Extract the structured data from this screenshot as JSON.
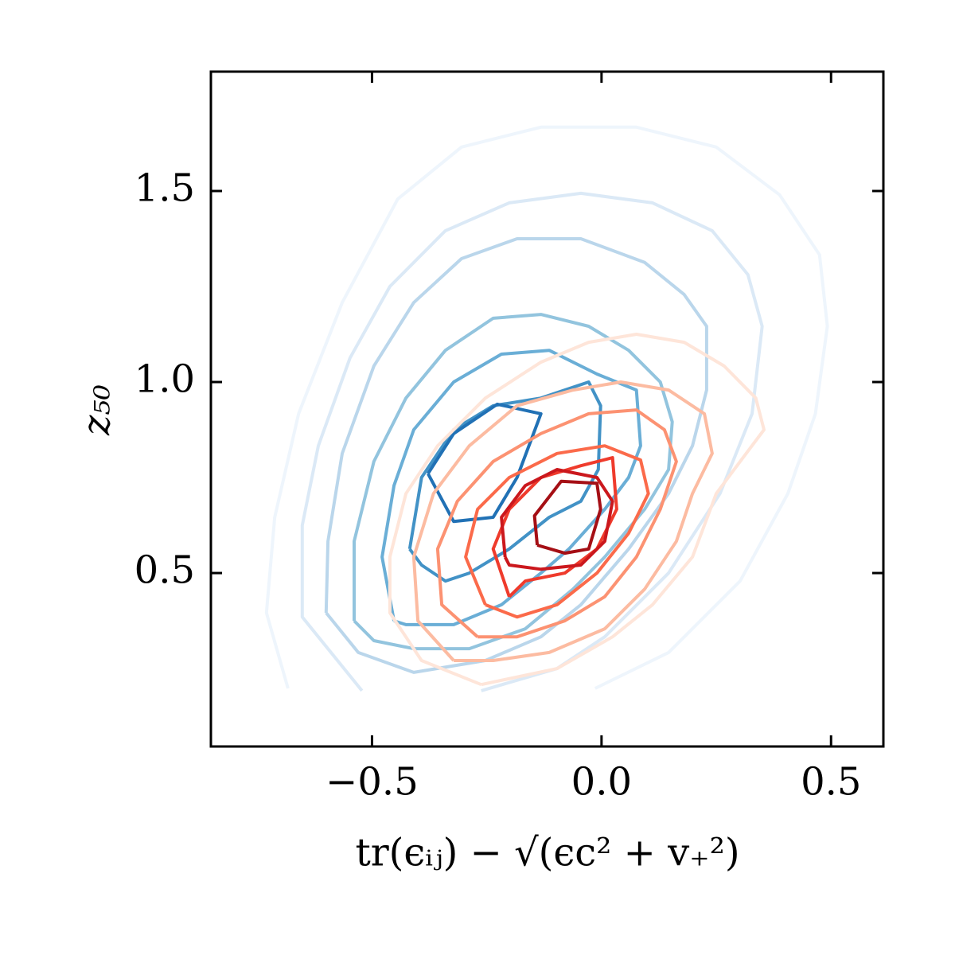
{
  "chart_data": {
    "type": "contour",
    "xlabel": "tr(ϵᵢⱼ) − √(ϵc² + v₊²)",
    "ylabel": "z₅₀",
    "xlim": [
      -0.851,
      0.614
    ],
    "ylim": [
      0.046,
      1.8125
    ],
    "xticks": [
      {
        "value": -0.5,
        "label": "−0.5"
      },
      {
        "value": 0,
        "label": "0.0"
      },
      0.5
    ],
    "yticks": [
      0.5,
      {
        "value": 1,
        "label": "1.0"
      },
      1.5
    ],
    "series": [
      {
        "color": "#eef5fc",
        "x": [
          -0.683,
          -0.73,
          -0.712,
          -0.66,
          -0.565,
          -0.444,
          -0.305,
          -0.132,
          0.076,
          0.25,
          0.388,
          0.475,
          0.492,
          0.466,
          0.406,
          0.302,
          0.146,
          -0.014
        ],
        "values": [
          0.198,
          0.396,
          0.646,
          0.917,
          1.208,
          1.479,
          1.615,
          1.667,
          1.667,
          1.615,
          1.49,
          1.333,
          1.146,
          0.917,
          0.708,
          0.479,
          0.292,
          0.198
        ]
      },
      {
        "color": "#dbe9f6",
        "x": [
          -0.522,
          -0.652,
          -0.652,
          -0.617,
          -0.548,
          -0.461,
          -0.34,
          -0.201,
          -0.045,
          0.111,
          0.241,
          0.319,
          0.35,
          0.328,
          0.258,
          0.146,
          0.007,
          -0.097,
          -0.262
        ],
        "values": [
          0.192,
          0.385,
          0.625,
          0.833,
          1.063,
          1.25,
          1.396,
          1.469,
          1.494,
          1.469,
          1.396,
          1.281,
          1.146,
          0.917,
          0.708,
          0.5,
          0.333,
          0.25,
          0.192
        ]
      },
      {
        "color": "#bad6eb",
        "x": [
          -0.6,
          -0.596,
          -0.565,
          -0.496,
          -0.409,
          -0.305,
          -0.184,
          -0.045,
          0.094,
          0.18,
          0.229,
          0.229,
          0.198,
          0.146,
          0.059,
          -0.045,
          -0.132,
          -0.253,
          -0.409,
          -0.53,
          -0.6
        ],
        "values": [
          0.396,
          0.583,
          0.813,
          1.042,
          1.208,
          1.323,
          1.375,
          1.375,
          1.313,
          1.229,
          1.146,
          0.979,
          0.833,
          0.708,
          0.563,
          0.417,
          0.333,
          0.271,
          0.24,
          0.292,
          0.396
        ]
      },
      {
        "color": "#92c4de",
        "x": [
          -0.539,
          -0.539,
          -0.496,
          -0.426,
          -0.34,
          -0.236,
          -0.132,
          -0.028,
          0.059,
          0.128,
          0.154,
          0.146,
          0.094,
          0.007,
          -0.062,
          -0.166,
          -0.288,
          -0.409,
          -0.496,
          -0.539
        ],
        "values": [
          0.375,
          0.583,
          0.792,
          0.958,
          1.083,
          1.167,
          1.177,
          1.146,
          1.083,
          1.0,
          0.896,
          0.771,
          0.667,
          0.542,
          0.458,
          0.354,
          0.302,
          0.302,
          0.323,
          0.375
        ]
      },
      {
        "color": "#6aaed6",
        "x": [
          -0.452,
          -0.478,
          -0.452,
          -0.409,
          -0.322,
          -0.218,
          -0.114,
          -0.01,
          0.076,
          0.085,
          0.059,
          0.007,
          -0.071,
          -0.132,
          -0.218,
          -0.322,
          -0.426,
          -0.452
        ],
        "values": [
          0.375,
          0.542,
          0.729,
          0.875,
          1.0,
          1.073,
          1.083,
          1.021,
          0.979,
          0.833,
          0.75,
          0.667,
          0.563,
          0.5,
          0.417,
          0.365,
          0.365,
          0.375
        ]
      },
      {
        "color": "#4292c6",
        "x": [
          -0.418,
          -0.392,
          -0.322,
          -0.236,
          -0.132,
          -0.028,
          -0.002,
          -0.007,
          -0.045,
          -0.114,
          -0.201,
          -0.288,
          -0.34,
          -0.392,
          -0.418
        ],
        "values": [
          0.563,
          0.75,
          0.875,
          0.938,
          0.958,
          1.0,
          0.938,
          0.771,
          0.688,
          0.646,
          0.563,
          0.5,
          0.479,
          0.521,
          0.563
        ]
      },
      {
        "color": "#2171b5",
        "x": [
          -0.378,
          -0.322,
          -0.227,
          -0.132,
          -0.184,
          -0.236,
          -0.322,
          -0.378
        ],
        "values": [
          0.76,
          0.865,
          0.942,
          0.917,
          0.75,
          0.646,
          0.635,
          0.76
        ]
      },
      {
        "color": "#fee5d9",
        "x": [
          -0.262,
          -0.392,
          -0.461,
          -0.461,
          -0.426,
          -0.357,
          -0.253,
          -0.132,
          -0.028,
          0.076,
          0.18,
          0.267,
          0.336,
          0.354,
          0.302,
          0.25,
          0.198,
          0.111,
          0.024,
          -0.097,
          -0.262
        ],
        "values": [
          0.208,
          0.271,
          0.396,
          0.542,
          0.708,
          0.833,
          0.958,
          1.052,
          1.104,
          1.125,
          1.104,
          1.042,
          0.958,
          0.875,
          0.792,
          0.708,
          0.542,
          0.417,
          0.333,
          0.25,
          0.208
        ]
      },
      {
        "color": "#fcbba1",
        "x": [
          -0.322,
          -0.4,
          -0.409,
          -0.366,
          -0.288,
          -0.184,
          -0.062,
          0.042,
          0.146,
          0.224,
          0.241,
          0.198,
          0.163,
          0.094,
          0.007,
          -0.114,
          -0.236,
          -0.322
        ],
        "values": [
          0.271,
          0.375,
          0.542,
          0.708,
          0.833,
          0.938,
          0.979,
          1.0,
          0.979,
          0.917,
          0.813,
          0.708,
          0.583,
          0.458,
          0.354,
          0.292,
          0.271,
          0.271
        ]
      },
      {
        "color": "#fc9272",
        "x": [
          -0.27,
          -0.348,
          -0.357,
          -0.314,
          -0.236,
          -0.132,
          -0.028,
          0.076,
          0.137,
          0.163,
          0.128,
          0.076,
          0.007,
          -0.08,
          -0.184,
          -0.27
        ],
        "values": [
          0.333,
          0.417,
          0.563,
          0.688,
          0.792,
          0.865,
          0.917,
          0.927,
          0.875,
          0.792,
          0.667,
          0.542,
          0.438,
          0.375,
          0.333,
          0.333
        ]
      },
      {
        "color": "#fb6a4a",
        "x": [
          -0.253,
          -0.296,
          -0.27,
          -0.201,
          -0.097,
          0.007,
          0.085,
          0.102,
          0.059,
          -0.01,
          -0.097,
          -0.184,
          -0.253
        ],
        "values": [
          0.417,
          0.542,
          0.667,
          0.75,
          0.813,
          0.833,
          0.796,
          0.708,
          0.604,
          0.5,
          0.417,
          0.385,
          0.417
        ]
      },
      {
        "color": "#ef3b2c",
        "x": [
          -0.201,
          -0.236,
          -0.201,
          -0.132,
          -0.045,
          0.024,
          0.033,
          -0.01,
          -0.08,
          -0.166,
          -0.201
        ],
        "values": [
          0.438,
          0.563,
          0.667,
          0.75,
          0.781,
          0.802,
          0.667,
          0.563,
          0.5,
          0.479,
          0.438
        ]
      },
      {
        "color": "#cb181d",
        "x": [
          -0.21,
          -0.218,
          -0.166,
          -0.097,
          -0.01,
          0.024,
          0.007,
          -0.045,
          -0.132,
          -0.201,
          -0.21
        ],
        "values": [
          0.542,
          0.646,
          0.729,
          0.771,
          0.75,
          0.688,
          0.583,
          0.521,
          0.51,
          0.521,
          0.542
        ]
      },
      {
        "color": "#a50f15",
        "x": [
          -0.14,
          -0.146,
          -0.088,
          -0.01,
          -0.002,
          -0.028,
          -0.08,
          -0.14
        ],
        "values": [
          0.573,
          0.65,
          0.74,
          0.735,
          0.667,
          0.563,
          0.552,
          0.573
        ]
      }
    ]
  }
}
